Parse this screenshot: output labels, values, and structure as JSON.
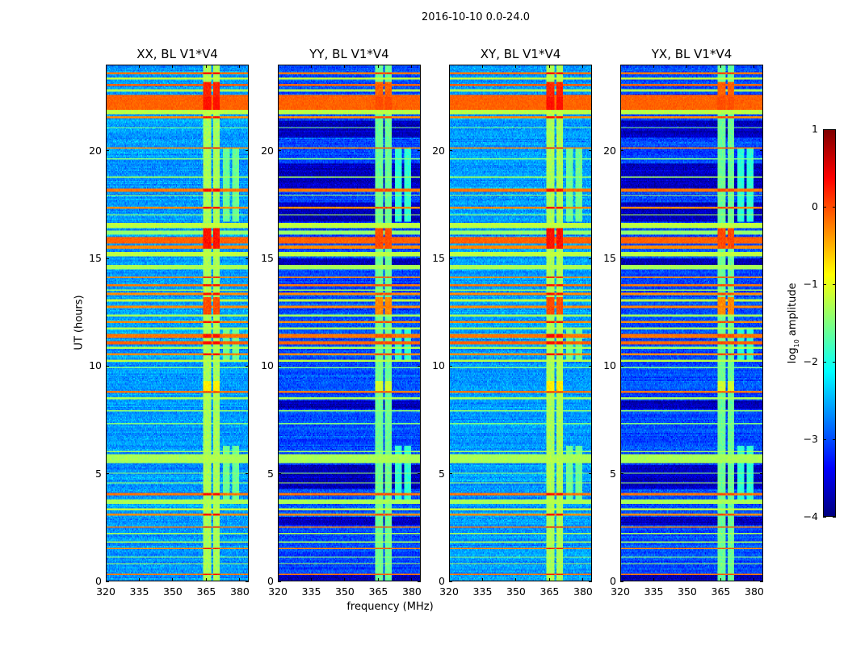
{
  "suptitle": "2016-10-10 0.0-24.0",
  "ylabel": "UT (hours)",
  "xlabel": "frequency (MHz)",
  "colorbar": {
    "label_prefix": "log",
    "label_sub": "10",
    "label_suffix": " amplitude",
    "range": [
      -4,
      1
    ],
    "ticks": [
      "1",
      "0",
      "−1",
      "−2",
      "−3",
      "−4"
    ],
    "tick_values": [
      1,
      0,
      -1,
      -2,
      -3,
      -4
    ],
    "colormap": "jet"
  },
  "chart_data": {
    "type": "heatmap",
    "xlim": [
      320,
      384
    ],
    "ylim": [
      0,
      24
    ],
    "xticks": [
      320,
      335,
      350,
      365,
      380
    ],
    "yticks": [
      0,
      5,
      10,
      15,
      20
    ],
    "panels": [
      {
        "title": "XX, BL V1*V4",
        "background_level": -2.6,
        "dark_rows": false
      },
      {
        "title": "YY, BL V1*V4",
        "background_level": -3.0,
        "dark_rows": true
      },
      {
        "title": "XY, BL V1*V4",
        "background_level": -2.6,
        "dark_rows": false
      },
      {
        "title": "YX, BL V1*V4",
        "background_level": -3.0,
        "dark_rows": true
      }
    ],
    "time_stripes_hours_level": [
      [
        23.55,
        23.65,
        -0.2
      ],
      [
        23.3,
        23.38,
        -1.2
      ],
      [
        23.0,
        23.1,
        -0.1
      ],
      [
        22.75,
        22.85,
        -1.3
      ],
      [
        21.9,
        22.6,
        -0.1
      ],
      [
        21.7,
        21.9,
        -1.2
      ],
      [
        21.5,
        21.6,
        -0.3
      ],
      [
        21.05,
        21.1,
        -1.5
      ],
      [
        20.1,
        20.15,
        -0.3
      ],
      [
        19.6,
        19.65,
        -1.5
      ],
      [
        18.75,
        18.8,
        -1.3
      ],
      [
        18.1,
        18.25,
        -0.2
      ],
      [
        17.9,
        17.95,
        -1.3
      ],
      [
        17.3,
        17.4,
        -0.3
      ],
      [
        17.0,
        17.05,
        -1.3
      ],
      [
        16.4,
        16.65,
        -1.2
      ],
      [
        16.1,
        16.3,
        -1.4
      ],
      [
        15.7,
        16.0,
        -0.1
      ],
      [
        15.45,
        15.6,
        -0.3
      ],
      [
        15.1,
        15.3,
        -1.2
      ],
      [
        14.5,
        14.7,
        -1.3
      ],
      [
        14.1,
        14.15,
        -0.3
      ],
      [
        13.7,
        13.8,
        -0.2
      ],
      [
        13.5,
        13.55,
        -1.3
      ],
      [
        13.3,
        13.4,
        -0.3
      ],
      [
        13.0,
        13.1,
        -1.2
      ],
      [
        12.7,
        12.8,
        -0.3
      ],
      [
        12.3,
        12.4,
        -1.3
      ],
      [
        12.0,
        12.1,
        -0.3
      ],
      [
        11.7,
        11.8,
        -1.3
      ],
      [
        11.3,
        11.5,
        -0.2
      ],
      [
        11.0,
        11.15,
        -0.1
      ],
      [
        10.8,
        10.9,
        -1.3
      ],
      [
        10.5,
        10.6,
        -0.3
      ],
      [
        10.2,
        10.3,
        -1.2
      ],
      [
        9.9,
        9.95,
        -1.5
      ],
      [
        8.75,
        8.85,
        -0.2
      ],
      [
        8.45,
        8.55,
        -1.3
      ],
      [
        7.9,
        7.95,
        -1.4
      ],
      [
        7.3,
        7.35,
        -1.5
      ],
      [
        6.0,
        6.05,
        -1.3
      ],
      [
        5.5,
        5.9,
        -1.3
      ],
      [
        5.0,
        5.05,
        -1.4
      ],
      [
        4.55,
        4.6,
        -1.3
      ],
      [
        4.0,
        4.1,
        -0.2
      ],
      [
        3.6,
        3.8,
        -1.3
      ],
      [
        3.3,
        3.4,
        -1.2
      ],
      [
        3.05,
        3.15,
        -0.3
      ],
      [
        2.5,
        2.55,
        -0.2
      ],
      [
        2.2,
        2.25,
        -1.3
      ],
      [
        1.8,
        1.85,
        -1.3
      ],
      [
        1.5,
        1.55,
        -0.3
      ],
      [
        1.1,
        1.15,
        -1.4
      ],
      [
        0.8,
        0.85,
        -1.3
      ],
      [
        0.3,
        0.35,
        -0.2
      ]
    ],
    "dark_time_ranges_hours": [
      [
        20.6,
        21.4
      ],
      [
        18.2,
        19.4
      ],
      [
        16.7,
        17.6
      ],
      [
        14.6,
        15.0
      ],
      [
        8.0,
        8.4
      ],
      [
        4.3,
        5.4
      ],
      [
        0,
        0.3
      ],
      [
        2.6,
        3.0
      ]
    ],
    "dark_level": -3.7,
    "rfi_bands_mhz": [
      [
        363.5,
        367.2
      ],
      [
        368,
        371
      ]
    ],
    "rfi_band_level": -1.3,
    "rfi_band_hot_hours_level": [
      [
        22.5,
        23.2,
        0.2
      ],
      [
        15.5,
        16.4,
        0.3
      ],
      [
        12.4,
        13.2,
        0.0
      ],
      [
        8.8,
        9.3,
        -0.8
      ]
    ],
    "secondary_bands_mhz": [
      [
        372.5,
        375.5
      ],
      [
        376.5,
        379.8
      ]
    ],
    "secondary_active_hours": [
      [
        16.7,
        20.1
      ],
      [
        10.2,
        11.8
      ],
      [
        5,
        6.3
      ],
      [
        3.8,
        5.2
      ]
    ],
    "secondary_level": -1.6
  }
}
